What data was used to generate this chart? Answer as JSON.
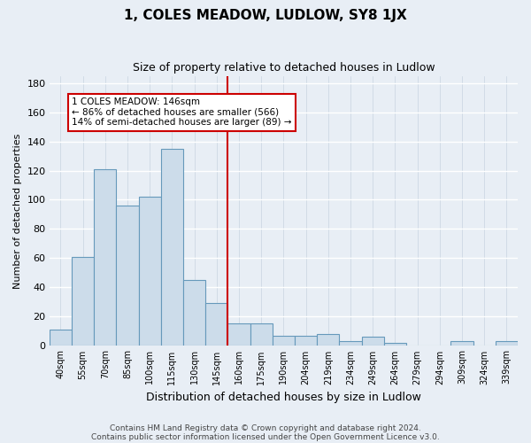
{
  "title": "1, COLES MEADOW, LUDLOW, SY8 1JX",
  "subtitle": "Size of property relative to detached houses in Ludlow",
  "xlabel": "Distribution of detached houses by size in Ludlow",
  "ylabel": "Number of detached properties",
  "bar_labels": [
    "40sqm",
    "55sqm",
    "70sqm",
    "85sqm",
    "100sqm",
    "115sqm",
    "130sqm",
    "145sqm",
    "160sqm",
    "175sqm",
    "190sqm",
    "204sqm",
    "219sqm",
    "234sqm",
    "249sqm",
    "264sqm",
    "279sqm",
    "294sqm",
    "309sqm",
    "324sqm",
    "339sqm"
  ],
  "bar_values": [
    11,
    61,
    121,
    96,
    102,
    135,
    45,
    29,
    15,
    15,
    7,
    7,
    8,
    3,
    6,
    2,
    0,
    0,
    3,
    0,
    3
  ],
  "bar_color": "#ccdcea",
  "bar_edgecolor": "#6699bb",
  "vline_index": 7,
  "vline_color": "#cc0000",
  "ylim": [
    0,
    185
  ],
  "yticks": [
    0,
    20,
    40,
    60,
    80,
    100,
    120,
    140,
    160,
    180
  ],
  "annotation_title": "1 COLES MEADOW: 146sqm",
  "annotation_line1": "← 86% of detached houses are smaller (566)",
  "annotation_line2": "14% of semi-detached houses are larger (89) →",
  "annotation_box_facecolor": "#ffffff",
  "annotation_box_edgecolor": "#cc0000",
  "footer1": "Contains HM Land Registry data © Crown copyright and database right 2024.",
  "footer2": "Contains public sector information licensed under the Open Government Licence v3.0.",
  "background_color": "#e8eef5",
  "grid_color": "#c8d4e0"
}
